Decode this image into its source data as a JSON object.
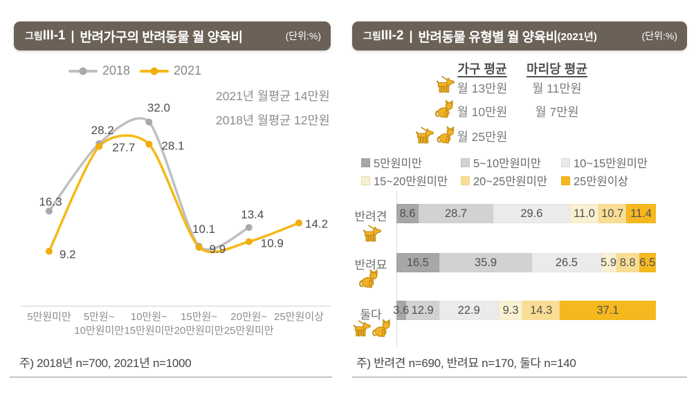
{
  "figure1": {
    "prefix_label": "그림",
    "prefix_id": "III-1",
    "divider": "|",
    "title": "반려가구의 반려동물 월 양육비",
    "unit": "(단위:%)",
    "annotations": [
      "2021년 월평균 14만원",
      "2018년 월평균 12만원"
    ],
    "footnote": "주) 2018년 n=700, 2021년 n=1000"
  },
  "figure2": {
    "prefix_label": "그림",
    "prefix_id": "III-2",
    "divider": "|",
    "title": "반려동물 유형별 월 양육비",
    "title_suffix": "(2021년)",
    "unit": "(단위:%)",
    "avg_table": {
      "col_headers": [
        "가구 평균",
        "마리당 평균"
      ],
      "rows": [
        {
          "pet": "dog",
          "household_avg": "월 13만원",
          "per_animal_avg": "월 11만원"
        },
        {
          "pet": "cat",
          "household_avg": "월 10만원",
          "per_animal_avg": "월 7만원"
        },
        {
          "pet": "dog-cat",
          "household_avg": "월 25만원",
          "per_animal_avg": ""
        }
      ]
    },
    "footnote": "주) 반려견 n=690, 반려묘 n=170, 둘다 n=140"
  },
  "chart_data": [
    {
      "type": "line",
      "title": "반려가구의 반려동물 월 양육비",
      "unit": "%",
      "categories": [
        "5만원미만",
        "5만원~10만원미만",
        "10만원~15만원미만",
        "15만원~20만원미만",
        "20만원~25만원미만",
        "25만원이상"
      ],
      "series": [
        {
          "name": "2018",
          "color": "#bfbfbf",
          "values": [
            16.3,
            28.2,
            32.0,
            10.1,
            13.4,
            null
          ]
        },
        {
          "name": "2021",
          "color": "#f5b914",
          "values": [
            9.2,
            27.7,
            28.1,
            9.9,
            10.9,
            14.2
          ]
        }
      ],
      "ylim": [
        0,
        40
      ],
      "grid": false,
      "legend_position": "top"
    },
    {
      "type": "bar",
      "stacked": true,
      "orientation": "horizontal",
      "title": "반려동물 유형별 월 양육비(2021년)",
      "unit": "%",
      "categories": [
        "반려견",
        "반려묘",
        "둘다"
      ],
      "category_pets": [
        "dog",
        "cat",
        "dog-cat"
      ],
      "segments": [
        "5만원미만",
        "5~10만원미만",
        "10~15만원미만",
        "15~20만원미만",
        "20~25만원미만",
        "25만원이상"
      ],
      "segment_colors": [
        "#a7a7a7",
        "#d2d2d2",
        "#ebebeb",
        "#faf1d3",
        "#f9dd94",
        "#f5b81f"
      ],
      "series": [
        {
          "name": "반려견",
          "values": [
            8.6,
            28.7,
            29.6,
            11.0,
            10.7,
            11.4
          ]
        },
        {
          "name": "반려묘",
          "values": [
            16.5,
            35.9,
            26.5,
            5.9,
            8.8,
            6.5
          ]
        },
        {
          "name": "둘다",
          "values": [
            3.6,
            12.9,
            22.9,
            9.3,
            14.3,
            37.1
          ]
        }
      ],
      "xlim": [
        0,
        100
      ]
    }
  ]
}
